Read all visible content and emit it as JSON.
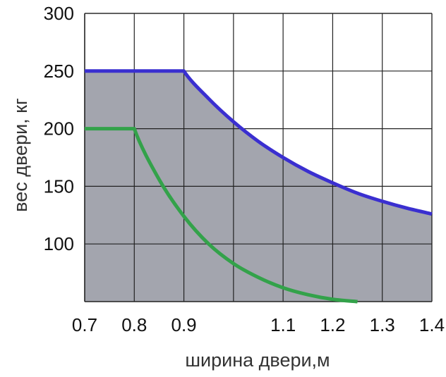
{
  "chart_data": {
    "type": "area",
    "xlabel": "ширина двери,м",
    "ylabel": "вес двери, кг",
    "xlim": [
      0.7,
      1.4
    ],
    "ylim": [
      50,
      300
    ],
    "x_ticks": [
      "0.7",
      "0.8",
      "0.9",
      "1.1",
      "1.2",
      "1.3",
      "1.4"
    ],
    "x_tick_values": [
      0.7,
      0.8,
      0.9,
      1.0,
      1.1,
      1.2,
      1.3,
      1.4
    ],
    "x_tick_positions_index": [
      0,
      1,
      2,
      4,
      5,
      6,
      7
    ],
    "y_ticks": [
      "300",
      "250",
      "200",
      "150",
      "100"
    ],
    "y_tick_values": [
      300,
      250,
      200,
      150,
      100
    ],
    "grid": true,
    "series": [
      {
        "color": "#3a2fd0",
        "filled": true,
        "x": [
          0.7,
          0.8,
          0.9,
          0.95,
          1.0,
          1.05,
          1.1,
          1.15,
          1.2,
          1.25,
          1.3,
          1.35,
          1.4
        ],
        "values": [
          250,
          250,
          250,
          226,
          206,
          189,
          175,
          163,
          153,
          144,
          137,
          131,
          126
        ]
      },
      {
        "color": "#33a24a",
        "filled": false,
        "x": [
          0.7,
          0.8,
          0.85,
          0.9,
          0.95,
          1.0,
          1.05,
          1.1,
          1.15,
          1.2,
          1.25
        ],
        "values": [
          200,
          200,
          156,
          124,
          100,
          83,
          71,
          62,
          56,
          52,
          50
        ]
      }
    ],
    "colors": {
      "area_fill": "#a3a5ae",
      "grid": "#222222",
      "plot_background": "#ffffff"
    }
  }
}
